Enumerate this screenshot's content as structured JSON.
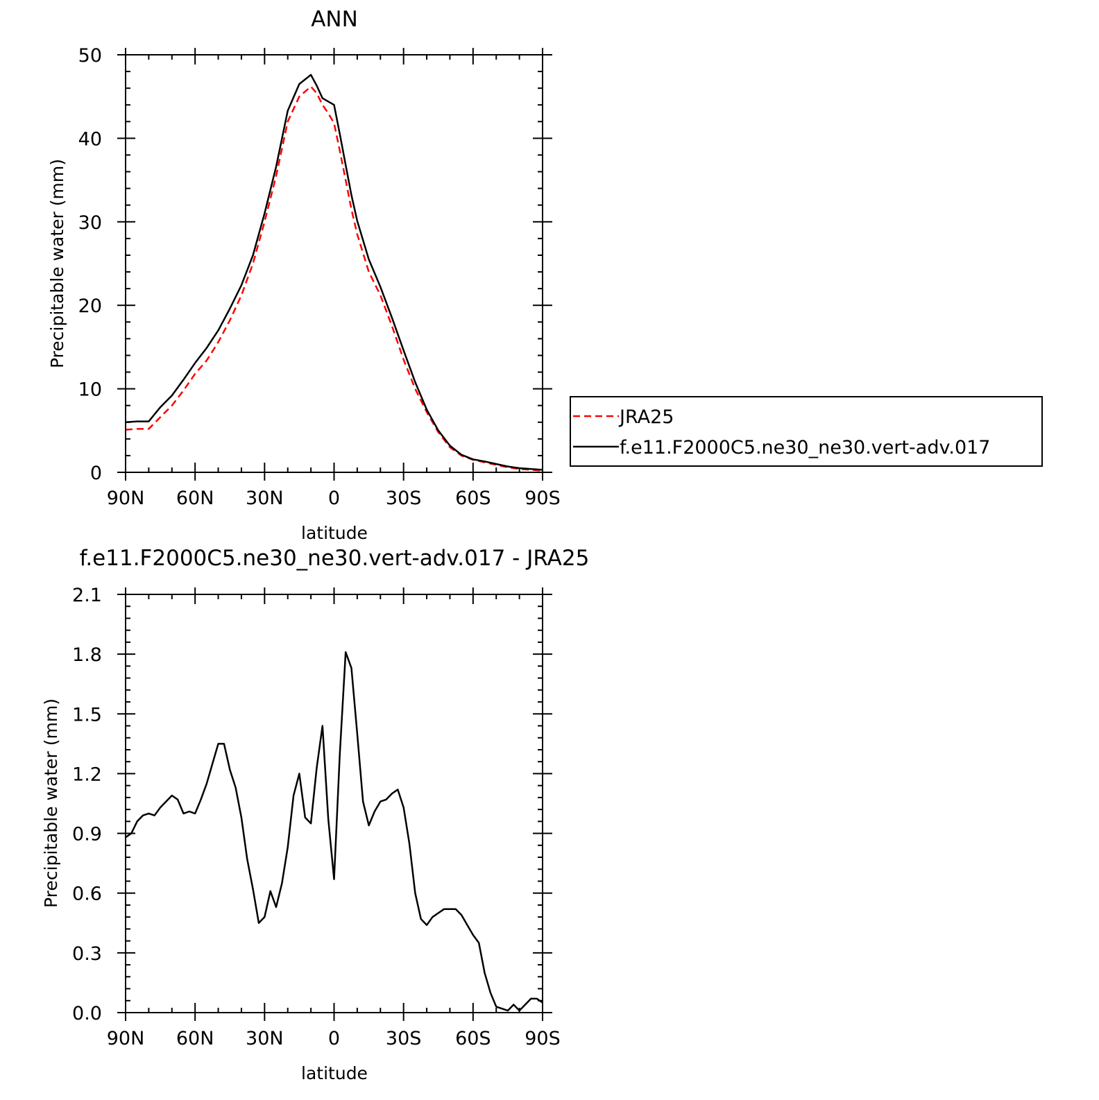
{
  "chart_data": [
    {
      "type": "line",
      "title": "ANN",
      "xlabel": "latitude",
      "ylabel": "Precipitable water (mm)",
      "xlim": [
        90,
        -90
      ],
      "ylim": [
        0,
        50
      ],
      "xticks": [
        90,
        60,
        30,
        0,
        -30,
        -60,
        -90
      ],
      "xtick_labels": [
        "90N",
        "60N",
        "30N",
        "0",
        "30S",
        "60S",
        "90S"
      ],
      "yticks": [
        0,
        10,
        20,
        30,
        40,
        50
      ],
      "ytick_labels": [
        "0",
        "10",
        "20",
        "30",
        "40",
        "50"
      ],
      "legend_position": "right",
      "series": [
        {
          "name": "JRA25",
          "color": "#ff0000",
          "dash": "dashed",
          "x": [
            90,
            85,
            80,
            75,
            70,
            65,
            60,
            55,
            50,
            45,
            40,
            35,
            30,
            25,
            20,
            15,
            10,
            7.5,
            5,
            2.5,
            0,
            -2.5,
            -5,
            -7.5,
            -10,
            -15,
            -20,
            -25,
            -30,
            -35,
            -40,
            -45,
            -50,
            -55,
            -60,
            -65,
            -70,
            -75,
            -80,
            -85,
            -90
          ],
          "y": [
            5.1,
            5.2,
            5.2,
            6.6,
            8.0,
            9.8,
            11.8,
            13.4,
            15.6,
            18.2,
            21.2,
            25.0,
            30.0,
            35.5,
            42.0,
            45.0,
            46.2,
            45.4,
            44.0,
            43.0,
            41.8,
            38.5,
            35.0,
            31.5,
            28.5,
            24.0,
            21.2,
            17.5,
            13.5,
            10.0,
            7.2,
            4.8,
            3.0,
            2.0,
            1.5,
            1.2,
            0.9,
            0.6,
            0.4,
            0.3,
            0.2
          ]
        },
        {
          "name": "f.e11.F2000C5.ne30_ne30.vert-adv.017",
          "color": "#000000",
          "dash": "solid",
          "x": [
            90,
            85,
            80,
            75,
            70,
            65,
            60,
            55,
            50,
            45,
            40,
            35,
            30,
            25,
            20,
            15,
            10,
            7.5,
            5,
            2.5,
            0,
            -2.5,
            -5,
            -7.5,
            -10,
            -15,
            -20,
            -25,
            -30,
            -35,
            -40,
            -45,
            -50,
            -55,
            -60,
            -65,
            -70,
            -75,
            -80,
            -85,
            -90
          ],
          "y": [
            6.0,
            6.1,
            6.1,
            7.8,
            9.2,
            11.1,
            13.1,
            14.9,
            17.0,
            19.6,
            22.4,
            26.0,
            31.0,
            36.6,
            43.3,
            46.5,
            47.6,
            46.3,
            44.8,
            44.4,
            44.0,
            40.5,
            36.8,
            33.2,
            30.1,
            25.5,
            22.2,
            18.5,
            14.6,
            10.8,
            7.5,
            5.0,
            3.2,
            2.1,
            1.55,
            1.3,
            1.0,
            0.7,
            0.5,
            0.4,
            0.3
          ]
        }
      ]
    },
    {
      "type": "line",
      "title": "f.e11.F2000C5.ne30_ne30.vert-adv.017 - JRA25",
      "xlabel": "latitude",
      "ylabel": "Precipitable water (mm)",
      "xlim": [
        90,
        -90
      ],
      "ylim": [
        0,
        2.1
      ],
      "xticks": [
        90,
        60,
        30,
        0,
        -30,
        -60,
        -90
      ],
      "xtick_labels": [
        "90N",
        "60N",
        "30N",
        "0",
        "30S",
        "60S",
        "90S"
      ],
      "yticks": [
        0,
        0.3,
        0.6,
        0.9,
        1.2,
        1.5,
        1.8,
        2.1
      ],
      "ytick_labels": [
        "0.0",
        "0.3",
        "0.6",
        "0.9",
        "1.2",
        "1.5",
        "1.8",
        "2.1"
      ],
      "series": [
        {
          "color": "#000000",
          "dash": "solid",
          "x": [
            90,
            87.5,
            85,
            82.5,
            80,
            77.5,
            75,
            72.5,
            70,
            67.5,
            65,
            62.5,
            60,
            57.5,
            55,
            52.5,
            50,
            47.5,
            45,
            42.5,
            40,
            37.5,
            35,
            32.5,
            30,
            27.5,
            25,
            22.5,
            20,
            17.5,
            15,
            12.5,
            10,
            7.5,
            5,
            2.5,
            0,
            -2.5,
            -5,
            -7.5,
            -10,
            -12.5,
            -15,
            -17.5,
            -20,
            -22.5,
            -25,
            -27.5,
            -30,
            -32.5,
            -35,
            -37.5,
            -40,
            -42.5,
            -45,
            -47.5,
            -50,
            -52.5,
            -55,
            -57.5,
            -60,
            -62.5,
            -65,
            -67.5,
            -70,
            -72.5,
            -75,
            -77.5,
            -80,
            -82.5,
            -85,
            -87.5,
            -90
          ],
          "y": [
            0.88,
            0.9,
            0.96,
            0.99,
            1.0,
            0.99,
            1.03,
            1.06,
            1.09,
            1.07,
            1.0,
            1.01,
            1.0,
            1.07,
            1.15,
            1.25,
            1.35,
            1.35,
            1.22,
            1.13,
            0.98,
            0.77,
            0.62,
            0.45,
            0.48,
            0.61,
            0.53,
            0.65,
            0.83,
            1.09,
            1.2,
            0.98,
            0.95,
            1.23,
            1.44,
            0.97,
            0.67,
            1.3,
            1.81,
            1.73,
            1.4,
            1.06,
            0.94,
            1.01,
            1.06,
            1.07,
            1.1,
            1.12,
            1.03,
            0.85,
            0.6,
            0.47,
            0.44,
            0.48,
            0.5,
            0.52,
            0.52,
            0.52,
            0.49,
            0.44,
            0.39,
            0.35,
            0.2,
            0.1,
            0.03,
            0.02,
            0.01,
            0.04,
            0.01,
            0.04,
            0.07,
            0.07,
            0.05
          ]
        }
      ]
    }
  ]
}
